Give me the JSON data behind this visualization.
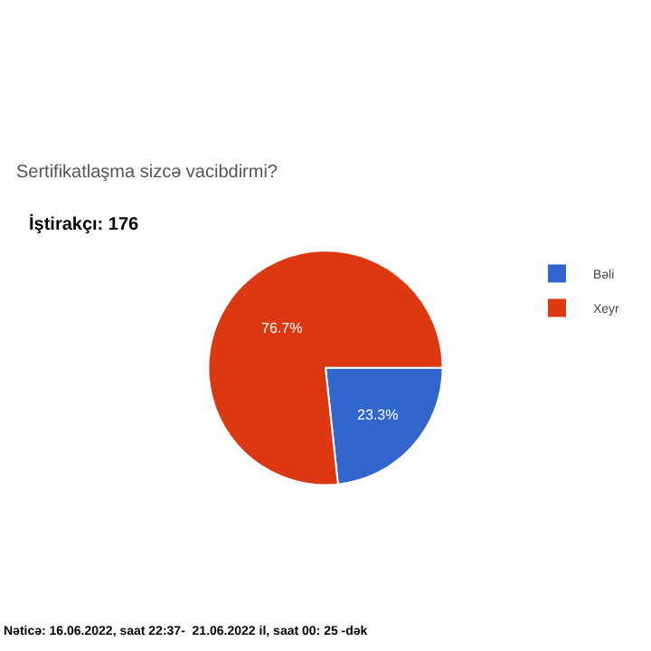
{
  "chart_data": {
    "type": "pie",
    "title": "Sertifikatlaşma sizcə vacibdirmi?",
    "subtitle": "İştirakçı: 176",
    "categories": [
      "Bəli",
      "Xeyr"
    ],
    "values": [
      23.3,
      76.7
    ],
    "colors": [
      "#3366cc",
      "#dc3912"
    ],
    "value_labels": [
      "23.3%",
      "76.7%"
    ],
    "legend": "right",
    "annotations": [
      "Nəticə: 16.06.2022, saat 22:37-  21.06.2022 il, saat 00: 25 -dək"
    ]
  }
}
